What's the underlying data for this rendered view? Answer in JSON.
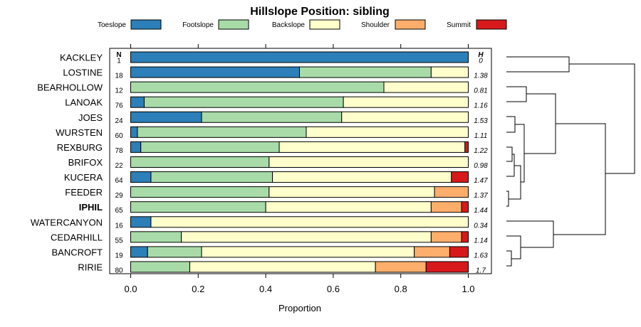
{
  "chart_data": {
    "type": "bar",
    "stacked": true,
    "orientation": "horizontal",
    "title": "Hillslope Position: sibling",
    "xlabel": "Proportion",
    "ylabel": "",
    "xlim": [
      0,
      1
    ],
    "xticks": [
      "0.0",
      "0.2",
      "0.4",
      "0.6",
      "0.8",
      "1.0"
    ],
    "xtick_values": [
      0,
      0.2,
      0.4,
      0.6,
      0.8,
      1.0
    ],
    "n_header": "N",
    "h_header": "H",
    "highlight": "IPHIL",
    "series": [
      {
        "name": "Toeslope",
        "color": "#2c7fb8"
      },
      {
        "name": "Footslope",
        "color": "#a8dba8"
      },
      {
        "name": "Backslope",
        "color": "#ffffcc"
      },
      {
        "name": "Shoulder",
        "color": "#fdae6b"
      },
      {
        "name": "Summit",
        "color": "#d7191c"
      }
    ],
    "rows": [
      {
        "name": "KACKLEY",
        "n": "1",
        "h": "0",
        "values": [
          1.0,
          0.0,
          0.0,
          0.0,
          0.0
        ]
      },
      {
        "name": "LOSTINE",
        "n": "18",
        "h": "1.38",
        "values": [
          0.5,
          0.39,
          0.11,
          0.0,
          0.0
        ]
      },
      {
        "name": "BEARHOLLOW",
        "n": "12",
        "h": "0.81",
        "values": [
          0.0,
          0.75,
          0.25,
          0.0,
          0.0
        ]
      },
      {
        "name": "LANOAK",
        "n": "76",
        "h": "1.16",
        "values": [
          0.04,
          0.59,
          0.37,
          0.0,
          0.0
        ]
      },
      {
        "name": "JOES",
        "n": "24",
        "h": "1.53",
        "values": [
          0.21,
          0.415,
          0.375,
          0.0,
          0.0
        ]
      },
      {
        "name": "WURSTEN",
        "n": "60",
        "h": "1.11",
        "values": [
          0.02,
          0.5,
          0.48,
          0.0,
          0.0
        ]
      },
      {
        "name": "REXBURG",
        "n": "78",
        "h": "1.22",
        "values": [
          0.03,
          0.41,
          0.55,
          0.0,
          0.01
        ]
      },
      {
        "name": "BRIFOX",
        "n": "22",
        "h": "0.98",
        "values": [
          0.0,
          0.41,
          0.59,
          0.0,
          0.0
        ]
      },
      {
        "name": "KUCERA",
        "n": "64",
        "h": "1.47",
        "values": [
          0.06,
          0.36,
          0.53,
          0.0,
          0.05
        ]
      },
      {
        "name": "FEEDER",
        "n": "29",
        "h": "1.37",
        "values": [
          0.0,
          0.41,
          0.49,
          0.1,
          0.0
        ]
      },
      {
        "name": "IPHIL",
        "n": "65",
        "h": "1.44",
        "values": [
          0.0,
          0.4,
          0.49,
          0.09,
          0.02
        ]
      },
      {
        "name": "WATERCANYON",
        "n": "16",
        "h": "0.34",
        "values": [
          0.06,
          0.0,
          0.94,
          0.0,
          0.0
        ]
      },
      {
        "name": "CEDARHILL",
        "n": "55",
        "h": "1.14",
        "values": [
          0.0,
          0.15,
          0.74,
          0.09,
          0.02
        ]
      },
      {
        "name": "BANCROFT",
        "n": "19",
        "h": "1.63",
        "values": [
          0.05,
          0.16,
          0.63,
          0.105,
          0.055
        ]
      },
      {
        "name": "RIRIE",
        "n": "80",
        "h": "1.7",
        "values": [
          0.0,
          0.175,
          0.55,
          0.15,
          0.125
        ]
      }
    ]
  }
}
